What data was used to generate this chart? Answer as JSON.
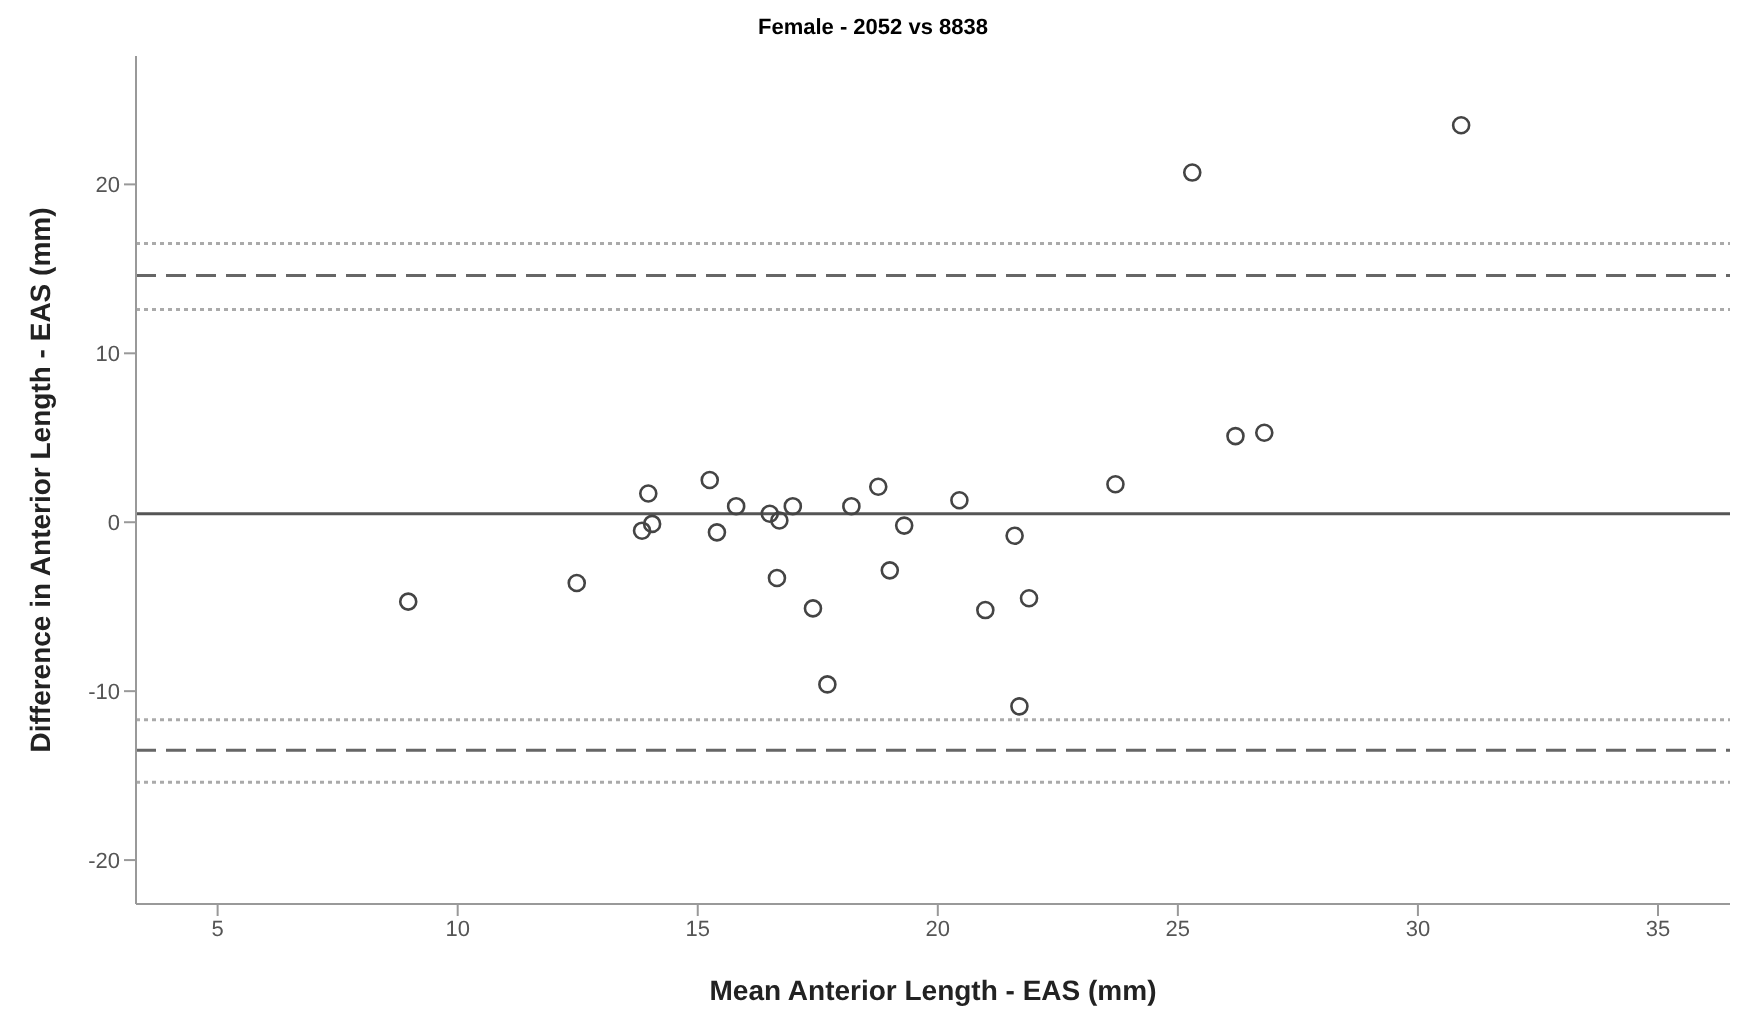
{
  "chart_data": {
    "type": "scatter",
    "title": "Female - 2052 vs 8838",
    "xlabel": "Mean Anterior Length - EAS (mm)",
    "ylabel": "Difference in Anterior Length - EAS (mm)",
    "x": [
      8.97,
      12.48,
      13.97,
      13.84,
      14.05,
      15.25,
      15.4,
      15.8,
      16.5,
      16.65,
      16.7,
      16.98,
      17.4,
      17.7,
      18.2,
      18.76,
      19.0,
      19.3,
      20.45,
      20.99,
      21.6,
      21.7,
      21.9,
      23.7,
      25.3,
      26.2,
      26.8,
      30.9
    ],
    "series": [
      {
        "color": "#444444",
        "values": [
          -4.7,
          -3.6,
          1.7,
          -0.5,
          -0.1,
          2.5,
          -0.6,
          0.95,
          0.5,
          -3.3,
          0.1,
          0.95,
          -5.1,
          -9.6,
          0.95,
          2.1,
          -2.85,
          -0.2,
          1.3,
          -5.2,
          -0.8,
          -10.9,
          -4.5,
          2.25,
          20.7,
          5.1,
          5.3,
          23.5
        ]
      }
    ],
    "marker": "circle",
    "grid": false,
    "legend": false,
    "xlim": [
      3.3,
      36.5
    ],
    "xticks": [
      5,
      10,
      15,
      20,
      25,
      30,
      35
    ],
    "ylim": [
      -22.6,
      27.6
    ],
    "yticks": [
      -20,
      -10,
      0,
      10,
      20
    ],
    "ref_lines": [
      {
        "axis": "y",
        "value": 0.5,
        "color": "#555555",
        "line_style": "solid"
      },
      {
        "axis": "y",
        "value": 14.6,
        "color": "#666666",
        "line_style": "dashed"
      },
      {
        "axis": "y",
        "value": 16.5,
        "color": "#aaaaaa",
        "line_style": "dotted"
      },
      {
        "axis": "y",
        "value": 12.6,
        "color": "#aaaaaa",
        "line_style": "dotted"
      },
      {
        "axis": "y",
        "value": -13.5,
        "color": "#666666",
        "line_style": "dashed"
      },
      {
        "axis": "y",
        "value": -11.7,
        "color": "#aaaaaa",
        "line_style": "dotted"
      },
      {
        "axis": "y",
        "value": -15.4,
        "color": "#aaaaaa",
        "line_style": "dotted"
      }
    ]
  }
}
